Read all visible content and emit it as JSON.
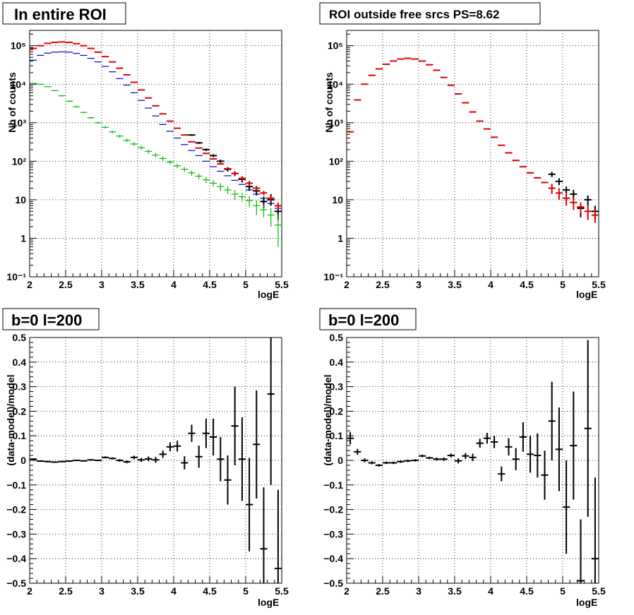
{
  "chart_data": [
    {
      "type": "scatter",
      "title": "In entire ROI",
      "xlabel": "logE",
      "ylabel": "Nb of counts",
      "xlim": [
        2,
        5.5
      ],
      "ylim": [
        0.1,
        250000
      ],
      "yscale": "log",
      "grid": true,
      "xticks": [
        "2",
        "2.5",
        "3",
        "3.5",
        "4",
        "4.5",
        "5",
        "5.5"
      ],
      "yticks": [
        "10⁻¹",
        "1",
        "10",
        "10²",
        "10³",
        "10⁴",
        "10⁵"
      ],
      "series": [
        {
          "color": "#000000",
          "x": [
            4.25,
            4.35,
            4.45,
            4.55,
            4.65,
            4.75,
            4.85,
            4.95,
            5.05,
            5.15,
            5.25,
            5.35,
            5.45
          ],
          "y": [
            480,
            300,
            200,
            140,
            100,
            62,
            48,
            34,
            22,
            17,
            9,
            10,
            5
          ],
          "yerr_low": [
            25,
            18,
            15,
            12,
            10,
            8,
            7,
            6,
            5,
            4,
            3,
            3,
            2
          ],
          "yerr_high": [
            25,
            18,
            15,
            12,
            10,
            8,
            7,
            6,
            5,
            4,
            3,
            4,
            2
          ]
        },
        {
          "color": "#0000cc",
          "x": [
            2.05,
            2.15,
            2.25,
            2.35,
            2.45,
            2.55,
            2.65,
            2.75,
            2.85,
            2.95,
            3.05,
            3.15,
            3.25,
            3.35,
            3.45,
            3.55,
            3.65,
            3.75,
            3.85,
            3.95,
            4.05,
            4.15,
            4.25,
            4.35,
            4.45,
            4.55,
            4.65,
            4.75,
            4.85,
            4.95,
            5.05,
            5.15,
            5.25,
            5.35,
            5.45
          ],
          "y": [
            42000,
            56000,
            64000,
            68000,
            69000,
            68000,
            63000,
            56000,
            47000,
            38000,
            29000,
            21000,
            14000,
            9500,
            6000,
            3800,
            2400,
            1500,
            900,
            600,
            400,
            270,
            190,
            140,
            100,
            72,
            55,
            42,
            32,
            25,
            18,
            14,
            11,
            8,
            6
          ],
          "yerr_low": [],
          "yerr_high": []
        },
        {
          "color": "#00bb00",
          "x": [
            2.05,
            2.15,
            2.25,
            2.35,
            2.45,
            2.55,
            2.65,
            2.75,
            2.85,
            2.95,
            3.05,
            3.15,
            3.25,
            3.35,
            3.45,
            3.55,
            3.65,
            3.75,
            3.85,
            3.95,
            4.05,
            4.15,
            4.25,
            4.35,
            4.45,
            4.55,
            4.65,
            4.75,
            4.85,
            4.95,
            5.05,
            5.15,
            5.25,
            5.35,
            5.45
          ],
          "y": [
            10500,
            10000,
            8600,
            6800,
            5000,
            3600,
            2600,
            1850,
            1350,
            1000,
            760,
            580,
            450,
            350,
            280,
            225,
            180,
            145,
            118,
            95,
            76,
            62,
            50,
            41,
            33,
            27,
            22,
            18,
            14,
            12,
            9.5,
            7,
            5.5,
            4,
            2.2
          ],
          "yerr_low": [
            300,
            300,
            250,
            220,
            180,
            150,
            120,
            100,
            80,
            65,
            55,
            45,
            40,
            35,
            30,
            25,
            22,
            18,
            15,
            12,
            10,
            9,
            8,
            7,
            6,
            5,
            5,
            4,
            4,
            3,
            3,
            3,
            2,
            2,
            1.6
          ],
          "yerr_high": [
            300,
            300,
            250,
            220,
            180,
            150,
            120,
            100,
            80,
            65,
            55,
            45,
            40,
            35,
            30,
            25,
            22,
            18,
            15,
            12,
            10,
            9,
            8,
            7,
            6,
            5,
            5,
            4,
            4,
            3,
            3,
            3,
            2,
            2,
            2
          ]
        },
        {
          "color": "#e00000",
          "x": [
            2.05,
            2.15,
            2.25,
            2.35,
            2.45,
            2.55,
            2.65,
            2.75,
            2.85,
            2.95,
            3.05,
            3.15,
            3.25,
            3.35,
            3.45,
            3.55,
            3.65,
            3.75,
            3.85,
            3.95,
            4.05,
            4.15,
            4.25,
            4.35,
            4.45,
            4.55,
            4.65,
            4.75,
            4.85,
            4.95,
            5.05,
            5.15,
            5.25,
            5.35,
            5.45
          ],
          "y": [
            85000,
            100000,
            115000,
            122000,
            125000,
            122000,
            113000,
            100000,
            85000,
            68000,
            52000,
            38000,
            26000,
            17500,
            11200,
            7100,
            4400,
            2750,
            1700,
            1100,
            720,
            480,
            320,
            220,
            160,
            115,
            85,
            64,
            48,
            36,
            27,
            20,
            15,
            11,
            7
          ],
          "yerr_low": [
            0,
            0,
            0,
            0,
            0,
            0,
            0,
            0,
            0,
            0,
            0,
            0,
            0,
            0,
            0,
            0,
            0,
            0,
            0,
            0,
            0,
            0,
            0,
            0,
            0,
            0,
            0,
            0,
            6,
            5,
            4,
            3,
            2,
            2,
            1.5
          ],
          "yerr_high": [
            0,
            0,
            0,
            0,
            0,
            0,
            0,
            0,
            0,
            0,
            0,
            0,
            0,
            0,
            0,
            0,
            0,
            0,
            0,
            0,
            0,
            0,
            0,
            0,
            0,
            0,
            0,
            0,
            6,
            5,
            4,
            3,
            2,
            2,
            1.5
          ]
        }
      ]
    },
    {
      "type": "scatter",
      "title": "ROI outside free srcs PS=8.62",
      "xlabel": "logE",
      "ylabel": "Nb of counts",
      "xlim": [
        2,
        5.5
      ],
      "ylim": [
        0.1,
        250000
      ],
      "yscale": "log",
      "grid": true,
      "xticks": [
        "2",
        "2.5",
        "3",
        "3.5",
        "4",
        "4.5",
        "5",
        "5.5"
      ],
      "yticks": [
        "10⁻¹",
        "1",
        "10",
        "10²",
        "10³",
        "10⁴",
        "10⁵"
      ],
      "series": [
        {
          "color": "#000000",
          "x": [
            4.85,
            4.95,
            5.05,
            5.15,
            5.25,
            5.35,
            5.45
          ],
          "y": [
            46,
            30,
            18,
            14,
            6,
            10,
            5
          ],
          "yerr_low": [
            7,
            6,
            4,
            4,
            2.5,
            3,
            2
          ],
          "yerr_high": [
            7,
            6,
            4,
            4,
            2.5,
            3,
            2
          ]
        },
        {
          "color": "#e00000",
          "x": [
            2.05,
            2.15,
            2.25,
            2.35,
            2.45,
            2.55,
            2.65,
            2.75,
            2.85,
            2.95,
            3.05,
            3.15,
            3.25,
            3.35,
            3.45,
            3.55,
            3.65,
            3.75,
            3.85,
            3.95,
            4.05,
            4.15,
            4.25,
            4.35,
            4.45,
            4.55,
            4.65,
            4.75,
            4.85,
            4.95,
            5.05,
            5.15,
            5.25,
            5.35,
            5.45
          ],
          "y": [
            580,
            3900,
            10000,
            17000,
            25000,
            33000,
            40000,
            45000,
            47000,
            45000,
            40000,
            32000,
            23000,
            15000,
            9400,
            5600,
            3300,
            1900,
            1100,
            690,
            420,
            260,
            165,
            105,
            72,
            50,
            37,
            28,
            20,
            15,
            11,
            8.5,
            6.5,
            5,
            4
          ],
          "yerr_low": [
            0,
            0,
            0,
            0,
            0,
            0,
            0,
            0,
            0,
            0,
            0,
            0,
            0,
            0,
            0,
            0,
            0,
            0,
            0,
            0,
            0,
            0,
            0,
            0,
            0,
            0,
            0,
            0,
            6,
            5,
            4,
            3,
            2,
            2,
            1.5
          ],
          "yerr_high": [
            0,
            0,
            0,
            0,
            0,
            0,
            0,
            0,
            0,
            0,
            0,
            0,
            0,
            0,
            0,
            0,
            0,
            0,
            0,
            0,
            0,
            0,
            0,
            0,
            0,
            0,
            0,
            0,
            6,
            5,
            4,
            3,
            2,
            2,
            1.5
          ]
        }
      ]
    },
    {
      "type": "scatter",
      "title": "b=0 l=200",
      "xlabel": "logE",
      "ylabel": "(data-model)/model",
      "xlim": [
        2,
        5.5
      ],
      "ylim": [
        -0.5,
        0.5
      ],
      "grid": true,
      "xticks": [
        "2",
        "2.5",
        "3",
        "3.5",
        "4",
        "4.5",
        "5",
        "5.5"
      ],
      "yticks": [
        "−0.5",
        "−0.4",
        "−0.3",
        "−0.2",
        "−0.1",
        "0",
        "0.1",
        "0.2",
        "0.3",
        "0.4",
        "0.5"
      ],
      "series": [
        {
          "color": "#000000",
          "x": [
            2.05,
            2.15,
            2.25,
            2.35,
            2.45,
            2.55,
            2.65,
            2.75,
            2.85,
            2.95,
            3.05,
            3.15,
            3.25,
            3.35,
            3.45,
            3.55,
            3.65,
            3.75,
            3.85,
            3.95,
            4.05,
            4.15,
            4.25,
            4.35,
            4.45,
            4.55,
            4.65,
            4.75,
            4.85,
            4.95,
            5.05,
            5.15,
            5.25,
            5.35,
            5.45
          ],
          "y": [
            0.005,
            -0.003,
            -0.005,
            -0.007,
            -0.005,
            -0.003,
            0.0,
            -0.002,
            0.002,
            0.0,
            0.012,
            0.008,
            0.0,
            -0.006,
            0.012,
            0.002,
            0.006,
            0.002,
            0.025,
            0.055,
            0.058,
            -0.01,
            0.11,
            0.015,
            0.11,
            0.095,
            0.005,
            -0.08,
            0.14,
            0.005,
            -0.18,
            0.065,
            -0.36,
            0.27,
            -0.44
          ],
          "yerr_low": [
            0.003,
            0.003,
            0.003,
            0.003,
            0.003,
            0.003,
            0.003,
            0.003,
            0.003,
            0.003,
            0.004,
            0.004,
            0.005,
            0.006,
            0.007,
            0.008,
            0.01,
            0.012,
            0.015,
            0.018,
            0.022,
            0.027,
            0.035,
            0.045,
            0.06,
            0.075,
            0.09,
            0.1,
            0.16,
            0.17,
            0.19,
            0.22,
            0.25,
            0.37,
            0.32
          ],
          "yerr_high": [
            0.003,
            0.003,
            0.003,
            0.003,
            0.003,
            0.003,
            0.003,
            0.003,
            0.003,
            0.003,
            0.004,
            0.004,
            0.005,
            0.006,
            0.007,
            0.008,
            0.01,
            0.012,
            0.015,
            0.018,
            0.022,
            0.027,
            0.035,
            0.045,
            0.06,
            0.075,
            0.09,
            0.1,
            0.16,
            0.17,
            0.19,
            0.22,
            0.25,
            0.37,
            0.32
          ]
        }
      ]
    },
    {
      "type": "scatter",
      "title": "b=0 l=200",
      "xlabel": "logE",
      "ylabel": "(data-model)/model",
      "xlim": [
        2,
        5.5
      ],
      "ylim": [
        -0.5,
        0.5
      ],
      "grid": true,
      "xticks": [
        "2",
        "2.5",
        "3",
        "3.5",
        "4",
        "4.5",
        "5",
        "5.5"
      ],
      "yticks": [
        "−0.5",
        "−0.4",
        "−0.3",
        "−0.2",
        "−0.1",
        "0",
        "0.1",
        "0.2",
        "0.3",
        "0.4",
        "0.5"
      ],
      "series": [
        {
          "color": "#000000",
          "x": [
            2.05,
            2.15,
            2.25,
            2.35,
            2.45,
            2.55,
            2.65,
            2.75,
            2.85,
            2.95,
            3.05,
            3.15,
            3.25,
            3.35,
            3.45,
            3.55,
            3.65,
            3.75,
            3.85,
            3.95,
            4.05,
            4.15,
            4.25,
            4.35,
            4.45,
            4.55,
            4.65,
            4.75,
            4.85,
            4.95,
            5.05,
            5.15,
            5.25,
            5.35,
            5.45
          ],
          "y": [
            0.09,
            0.035,
            0.0,
            -0.01,
            -0.02,
            -0.01,
            -0.01,
            -0.005,
            -0.002,
            0.0,
            0.018,
            0.01,
            0.005,
            0.005,
            0.02,
            -0.002,
            0.018,
            0.012,
            0.07,
            0.09,
            0.075,
            -0.055,
            0.055,
            0.005,
            0.095,
            0.025,
            0.02,
            -0.06,
            0.16,
            0.045,
            -0.19,
            0.06,
            -0.49,
            0.13,
            -0.4
          ],
          "yerr_low": [
            0.025,
            0.012,
            0.008,
            0.006,
            0.005,
            0.005,
            0.005,
            0.005,
            0.005,
            0.005,
            0.005,
            0.005,
            0.006,
            0.007,
            0.008,
            0.01,
            0.012,
            0.015,
            0.018,
            0.022,
            0.025,
            0.03,
            0.035,
            0.045,
            0.06,
            0.075,
            0.09,
            0.1,
            0.16,
            0.17,
            0.19,
            0.22,
            0.25,
            0.36,
            0.33
          ],
          "yerr_high": [
            0.025,
            0.012,
            0.008,
            0.006,
            0.005,
            0.005,
            0.005,
            0.005,
            0.005,
            0.005,
            0.005,
            0.005,
            0.006,
            0.007,
            0.008,
            0.01,
            0.012,
            0.015,
            0.018,
            0.022,
            0.025,
            0.03,
            0.035,
            0.045,
            0.06,
            0.075,
            0.09,
            0.1,
            0.16,
            0.17,
            0.19,
            0.22,
            0.25,
            0.36,
            0.33
          ]
        }
      ]
    }
  ]
}
